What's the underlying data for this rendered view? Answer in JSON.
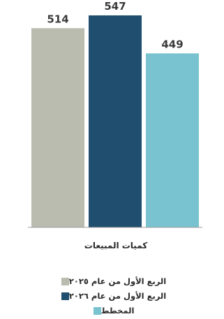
{
  "chart_data": {
    "type": "bar",
    "categories": [
      "كميات المبيعات"
    ],
    "series": [
      {
        "name": "الربع الأول من عام ٢٠٢٥",
        "values": [
          514
        ],
        "color": "#b9bcae"
      },
      {
        "name": "الربع الأول من عام ٢٠٢٦",
        "values": [
          547
        ],
        "color": "#1f4e6e"
      },
      {
        "name": "المخطط",
        "values": [
          449
        ],
        "color": "#78c3cf"
      }
    ],
    "title": "",
    "xlabel": "",
    "ylabel": "",
    "ylim": [
      0,
      547
    ],
    "grid": false,
    "legend_position": "bottom"
  }
}
